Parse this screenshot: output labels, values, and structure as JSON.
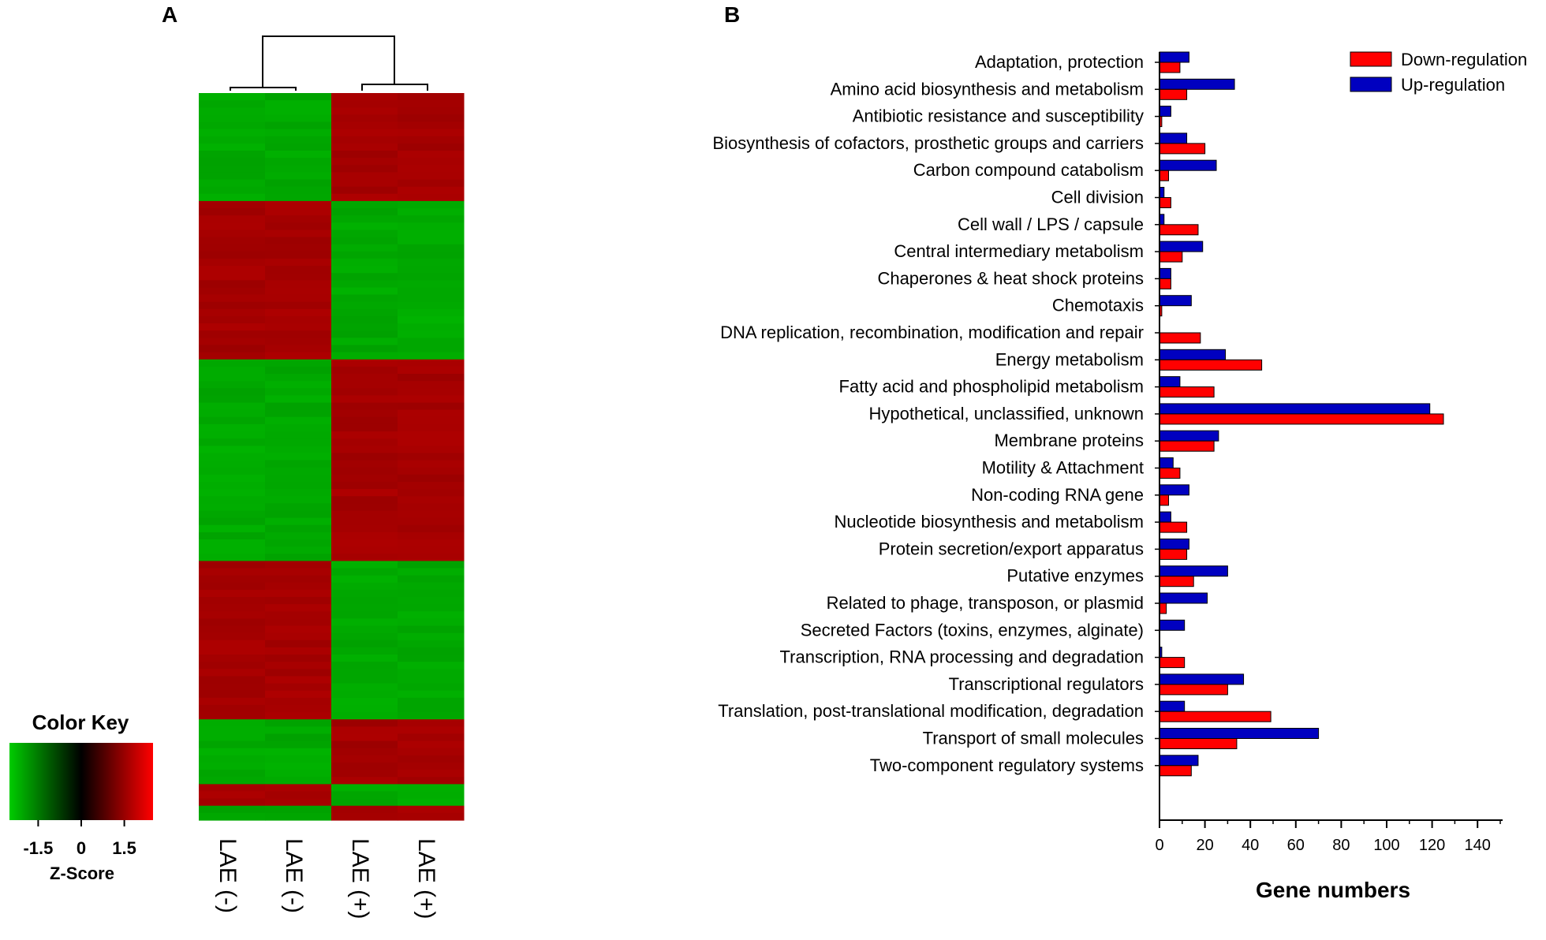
{
  "panels": {
    "a_label": "A",
    "b_label": "B"
  },
  "heatmap": {
    "color_key_title": "Color Key",
    "z_label": "Z-Score",
    "key_ticks": [
      "-1.5",
      "0",
      "1.5"
    ],
    "key_tick_values": [
      -1.5,
      0,
      1.5
    ],
    "key_range": [
      -2.5,
      2.5
    ],
    "samples": [
      "LAE (-)",
      "LAE (-)",
      "LAE (+)",
      "LAE (+)"
    ],
    "low_color": "#00cc00",
    "mid_color": "#000000",
    "high_color": "#ff0000",
    "blocks": [
      {
        "rows": 15,
        "pattern": [
          "low",
          "low",
          "high",
          "high"
        ]
      },
      {
        "rows": 22,
        "pattern": [
          "high",
          "high",
          "low",
          "low"
        ]
      },
      {
        "rows": 28,
        "pattern": [
          "low",
          "low",
          "high",
          "high"
        ]
      },
      {
        "rows": 22,
        "pattern": [
          "high",
          "high",
          "low",
          "low"
        ]
      },
      {
        "rows": 9,
        "pattern": [
          "low",
          "low",
          "high",
          "high"
        ]
      },
      {
        "rows": 3,
        "pattern": [
          "high",
          "high",
          "low",
          "low"
        ]
      },
      {
        "rows": 2,
        "pattern": [
          "low",
          "low",
          "high",
          "high"
        ]
      }
    ]
  },
  "chart_data": {
    "type": "bar",
    "orientation": "horizontal",
    "title": "",
    "xlabel": "Gene numbers",
    "ylabel": "",
    "xlim": [
      0,
      150
    ],
    "xticks": [
      0,
      20,
      40,
      60,
      80,
      100,
      120,
      140
    ],
    "legend_position": "top-right",
    "categories": [
      "Adaptation, protection",
      "Amino acid biosynthesis and metabolism",
      "Antibiotic resistance and susceptibility",
      "Biosynthesis of cofactors, prosthetic groups and carriers",
      "Carbon compound catabolism",
      "Cell division",
      "Cell wall / LPS / capsule",
      "Central intermediary metabolism",
      "Chaperones & heat shock proteins",
      "Chemotaxis",
      "DNA replication, recombination, modification and repair",
      "Energy metabolism",
      "Fatty acid and phospholipid metabolism",
      "Hypothetical, unclassified, unknown",
      "Membrane proteins",
      "Motility & Attachment",
      "Non-coding RNA gene",
      "Nucleotide biosynthesis and metabolism",
      "Protein secretion/export apparatus",
      "Putative enzymes",
      "Related to phage, transposon, or plasmid",
      "Secreted Factors (toxins, enzymes, alginate)",
      "Transcription, RNA processing and degradation",
      "Transcriptional regulators",
      "Translation, post-translational modification, degradation",
      "Transport of small molecules",
      "Two-component regulatory systems"
    ],
    "series": [
      {
        "name": "Up-regulation",
        "color": "#0000c0",
        "values": [
          13,
          33,
          5,
          12,
          25,
          2,
          2,
          19,
          5,
          14,
          0,
          29,
          9,
          119,
          26,
          6,
          13,
          5,
          13,
          30,
          21,
          11,
          1,
          37,
          11,
          70,
          17
        ]
      },
      {
        "name": "Down-regulation",
        "color": "#ff0000",
        "values": [
          9,
          12,
          1,
          20,
          4,
          5,
          17,
          10,
          5,
          1,
          18,
          45,
          24,
          125,
          24,
          9,
          4,
          12,
          12,
          15,
          3,
          0,
          11,
          30,
          49,
          34,
          14
        ]
      }
    ]
  }
}
